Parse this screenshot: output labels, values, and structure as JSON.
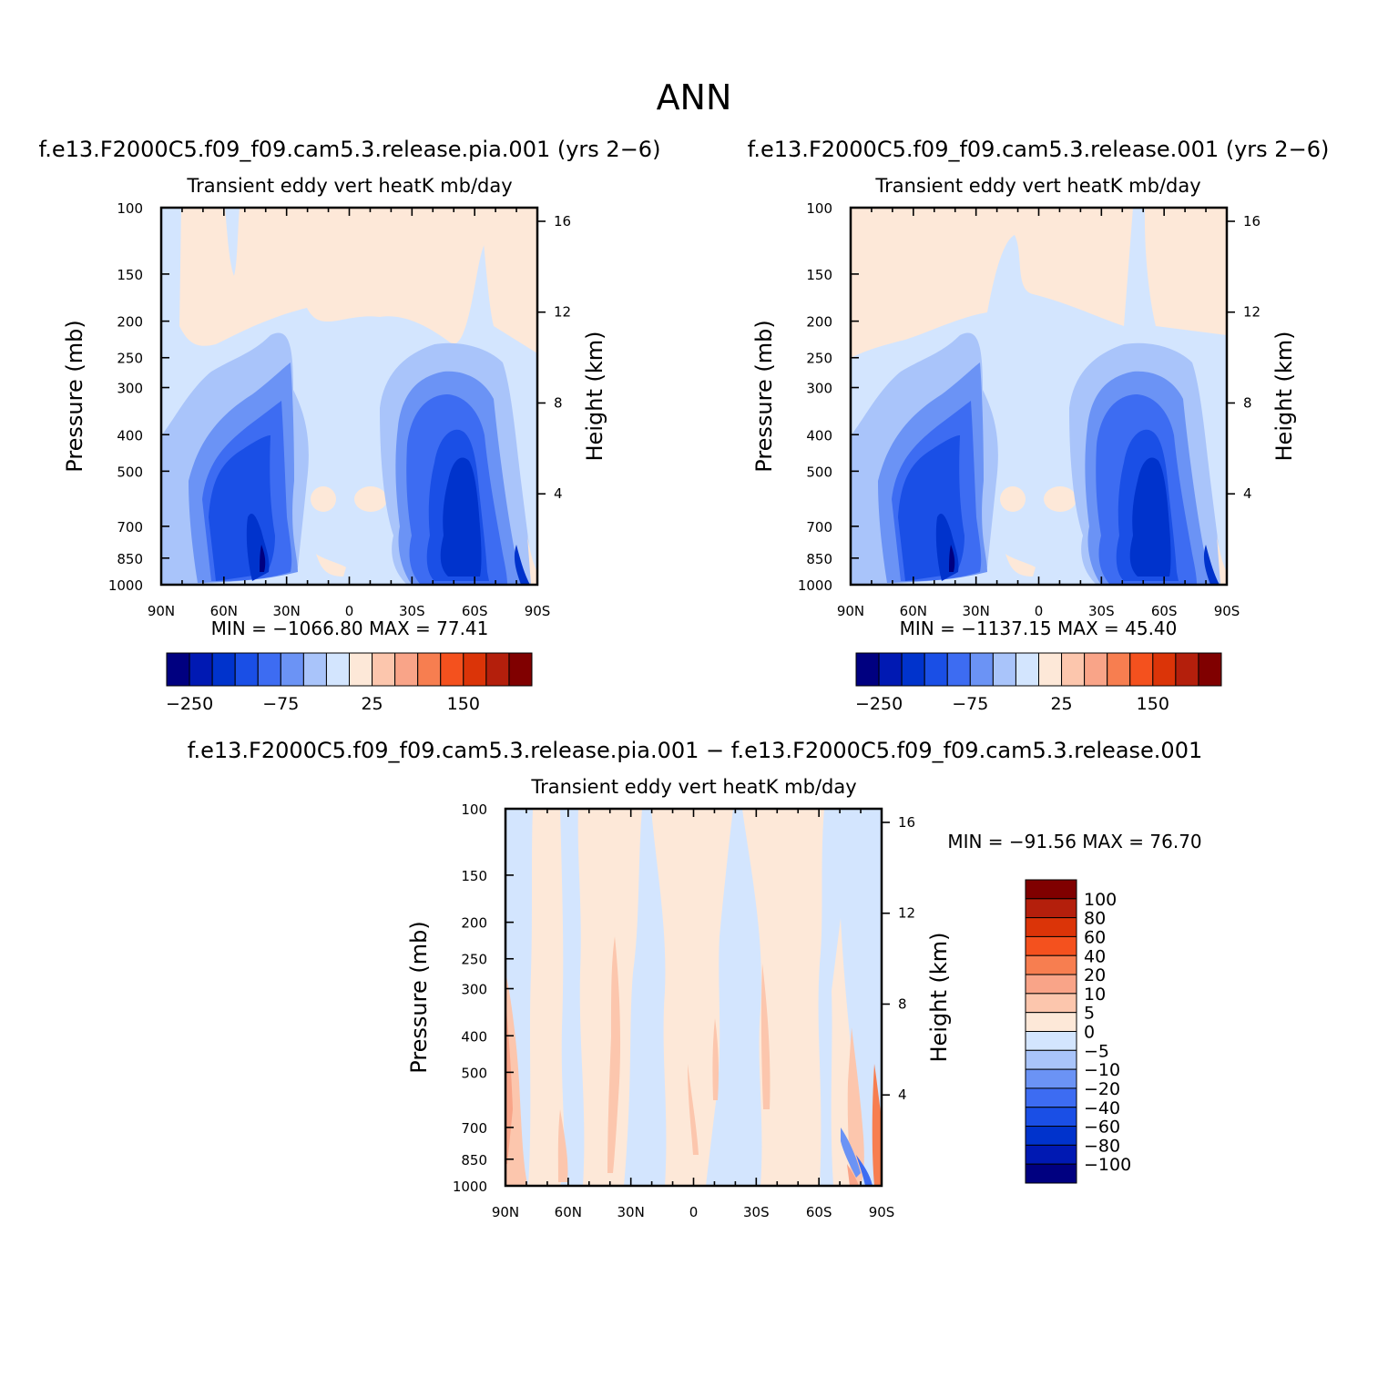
{
  "figure": {
    "season": "ANN",
    "diff_title": "f.e13.F2000C5.f09_f09.cam5.3.release.pia.001 − f.e13.F2000C5.f09_f09.cam5.3.release.001"
  },
  "chart_data": [
    {
      "type": "heatmap",
      "title": "f.e13.F2000C5.f09_f09.cam5.3.release.pia.001 (yrs 2−6)",
      "subtitle": "Transient eddy vert heatK mb/day",
      "xlabel": "",
      "ylabel": "Pressure (mb)",
      "ylabel_right": "Height (km)",
      "x_ticks": [
        "90N",
        "60N",
        "30N",
        "0",
        "30S",
        "60S",
        "90S"
      ],
      "y_ticks": [
        "100",
        "150",
        "200",
        "250",
        "300",
        "400",
        "500",
        "700",
        "850",
        "1000"
      ],
      "y_ticks_right": [
        "16",
        "12",
        "8",
        "4"
      ],
      "log_y": true,
      "ylim": [
        1000,
        100
      ],
      "stats": "MIN = −1066.80   MAX =  77.41",
      "colorbar": {
        "orientation": "horizontal",
        "labels": [
          "−250",
          "−75",
          "25",
          "150"
        ],
        "colors": [
          "#000080",
          "#0019b3",
          "#0033cc",
          "#1a4fe6",
          "#3d6cf2",
          "#6b93f5",
          "#a9c4fa",
          "#d3e5fe",
          "#fde8d8",
          "#fcc6ad",
          "#f9a488",
          "#f77e50",
          "#f4511e",
          "#db3408",
          "#b41f0c",
          "#800000"
        ]
      },
      "max_value": 77.41,
      "min_value": -1066.8
    },
    {
      "type": "heatmap",
      "title": "f.e13.F2000C5.f09_f09.cam5.3.release.001 (yrs 2−6)",
      "subtitle": "Transient eddy vert heatK mb/day",
      "xlabel": "",
      "ylabel": "Pressure (mb)",
      "ylabel_right": "Height (km)",
      "x_ticks": [
        "90N",
        "60N",
        "30N",
        "0",
        "30S",
        "60S",
        "90S"
      ],
      "y_ticks": [
        "100",
        "150",
        "200",
        "250",
        "300",
        "400",
        "500",
        "700",
        "850",
        "1000"
      ],
      "y_ticks_right": [
        "16",
        "12",
        "8",
        "4"
      ],
      "log_y": true,
      "ylim": [
        1000,
        100
      ],
      "stats": "MIN = −1137.15   MAX =  45.40",
      "colorbar": {
        "orientation": "horizontal",
        "labels": [
          "−250",
          "−75",
          "25",
          "150"
        ],
        "colors": [
          "#000080",
          "#0019b3",
          "#0033cc",
          "#1a4fe6",
          "#3d6cf2",
          "#6b93f5",
          "#a9c4fa",
          "#d3e5fe",
          "#fde8d8",
          "#fcc6ad",
          "#f9a488",
          "#f77e50",
          "#f4511e",
          "#db3408",
          "#b41f0c",
          "#800000"
        ]
      },
      "max_value": 45.4,
      "min_value": -1137.15
    },
    {
      "type": "heatmap",
      "title": "",
      "subtitle": "Transient eddy vert heatK mb/day",
      "xlabel": "",
      "ylabel": "Pressure (mb)",
      "ylabel_right": "Height (km)",
      "x_ticks": [
        "90N",
        "60N",
        "30N",
        "0",
        "30S",
        "60S",
        "90S"
      ],
      "y_ticks": [
        "100",
        "150",
        "200",
        "250",
        "300",
        "400",
        "500",
        "700",
        "850",
        "1000"
      ],
      "y_ticks_right": [
        "16",
        "12",
        "8",
        "4"
      ],
      "log_y": true,
      "ylim": [
        1000,
        100
      ],
      "stats": "MIN = −91.56   MAX =  76.70",
      "colorbar": {
        "orientation": "vertical",
        "labels": [
          "100",
          "80",
          "60",
          "40",
          "20",
          "10",
          "5",
          "0",
          "−5",
          "−10",
          "−20",
          "−40",
          "−60",
          "−80",
          "−100"
        ],
        "colors": [
          "#000080",
          "#0019b3",
          "#0033cc",
          "#1a4fe6",
          "#3d6cf2",
          "#6b93f5",
          "#a9c4fa",
          "#d3e5fe",
          "#fde8d8",
          "#fcc6ad",
          "#f9a488",
          "#f77e50",
          "#f4511e",
          "#db3408",
          "#b41f0c",
          "#800000"
        ]
      },
      "max_value": 76.7,
      "min_value": -91.56
    }
  ]
}
